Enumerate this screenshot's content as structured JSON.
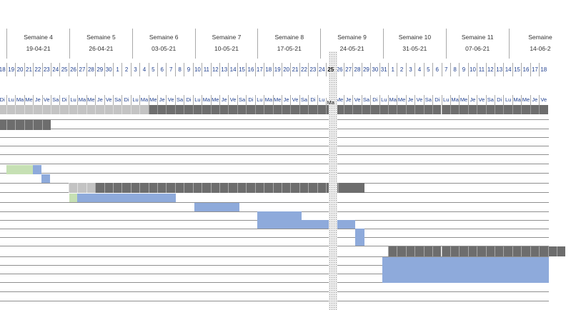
{
  "weeks": [
    {
      "label": "",
      "date": ""
    },
    {
      "label": "Semaine 4",
      "date": "19-04-21"
    },
    {
      "label": "Semaine 5",
      "date": "26-04-21"
    },
    {
      "label": "Semaine 6",
      "date": "03-05-21"
    },
    {
      "label": "Semaine 7",
      "date": "10-05-21"
    },
    {
      "label": "Semaine 8",
      "date": "17-05-21"
    },
    {
      "label": "Semaine 9",
      "date": "24-05-21"
    },
    {
      "label": "Semaine 10",
      "date": "31-05-21"
    },
    {
      "label": "Semaine 11",
      "date": "07-06-21"
    },
    {
      "label": "Semaine",
      "date": "14-06-2"
    }
  ],
  "days": [
    "18",
    "19",
    "20",
    "21",
    "22",
    "23",
    "24",
    "25",
    "26",
    "27",
    "28",
    "29",
    "30",
    "1",
    "2",
    "3",
    "4",
    "5",
    "6",
    "7",
    "8",
    "9",
    "10",
    "11",
    "12",
    "13",
    "14",
    "15",
    "16",
    "17",
    "18",
    "19",
    "20",
    "21",
    "22",
    "23",
    "24",
    "25",
    "26",
    "27",
    "28",
    "29",
    "30",
    "31",
    "1",
    "2",
    "3",
    "4",
    "5",
    "6",
    "7",
    "8",
    "9",
    "10",
    "11",
    "12",
    "13",
    "14",
    "15",
    "16",
    "17",
    "18"
  ],
  "dow": [
    "Di",
    "Lu",
    "Ma",
    "Me",
    "Je",
    "Ve",
    "Sa",
    "Di",
    "Lu",
    "Ma",
    "Me",
    "Je",
    "Ve",
    "Sa",
    "Di",
    "Lu",
    "Ma",
    "Me",
    "Je",
    "Ve",
    "Sa",
    "Di",
    "Lu",
    "Ma",
    "Me",
    "Je",
    "Ve",
    "Sa",
    "Di",
    "Lu",
    "Ma",
    "Me",
    "Je",
    "Ve",
    "Sa",
    "Di",
    "Lu",
    "Ma",
    "Me",
    "Je",
    "Ve",
    "Sa",
    "Di",
    "Lu",
    "Ma",
    "Me",
    "Je",
    "Ve",
    "Sa",
    "Di",
    "Lu",
    "Ma",
    "Me",
    "Je",
    "Ve",
    "Sa",
    "Di",
    "Lu",
    "Ma",
    "Me",
    "Je",
    "Ve"
  ],
  "today_day_index": 37,
  "today_dow_label": "Ma",
  "colors": {
    "summary": "#6d6d6d",
    "summary_light": "#c3c3c3",
    "task": "#8eaadb",
    "done": "#c6e0b4",
    "grid": "#a9a9a9",
    "date_text": "#1f3f8f"
  }
}
